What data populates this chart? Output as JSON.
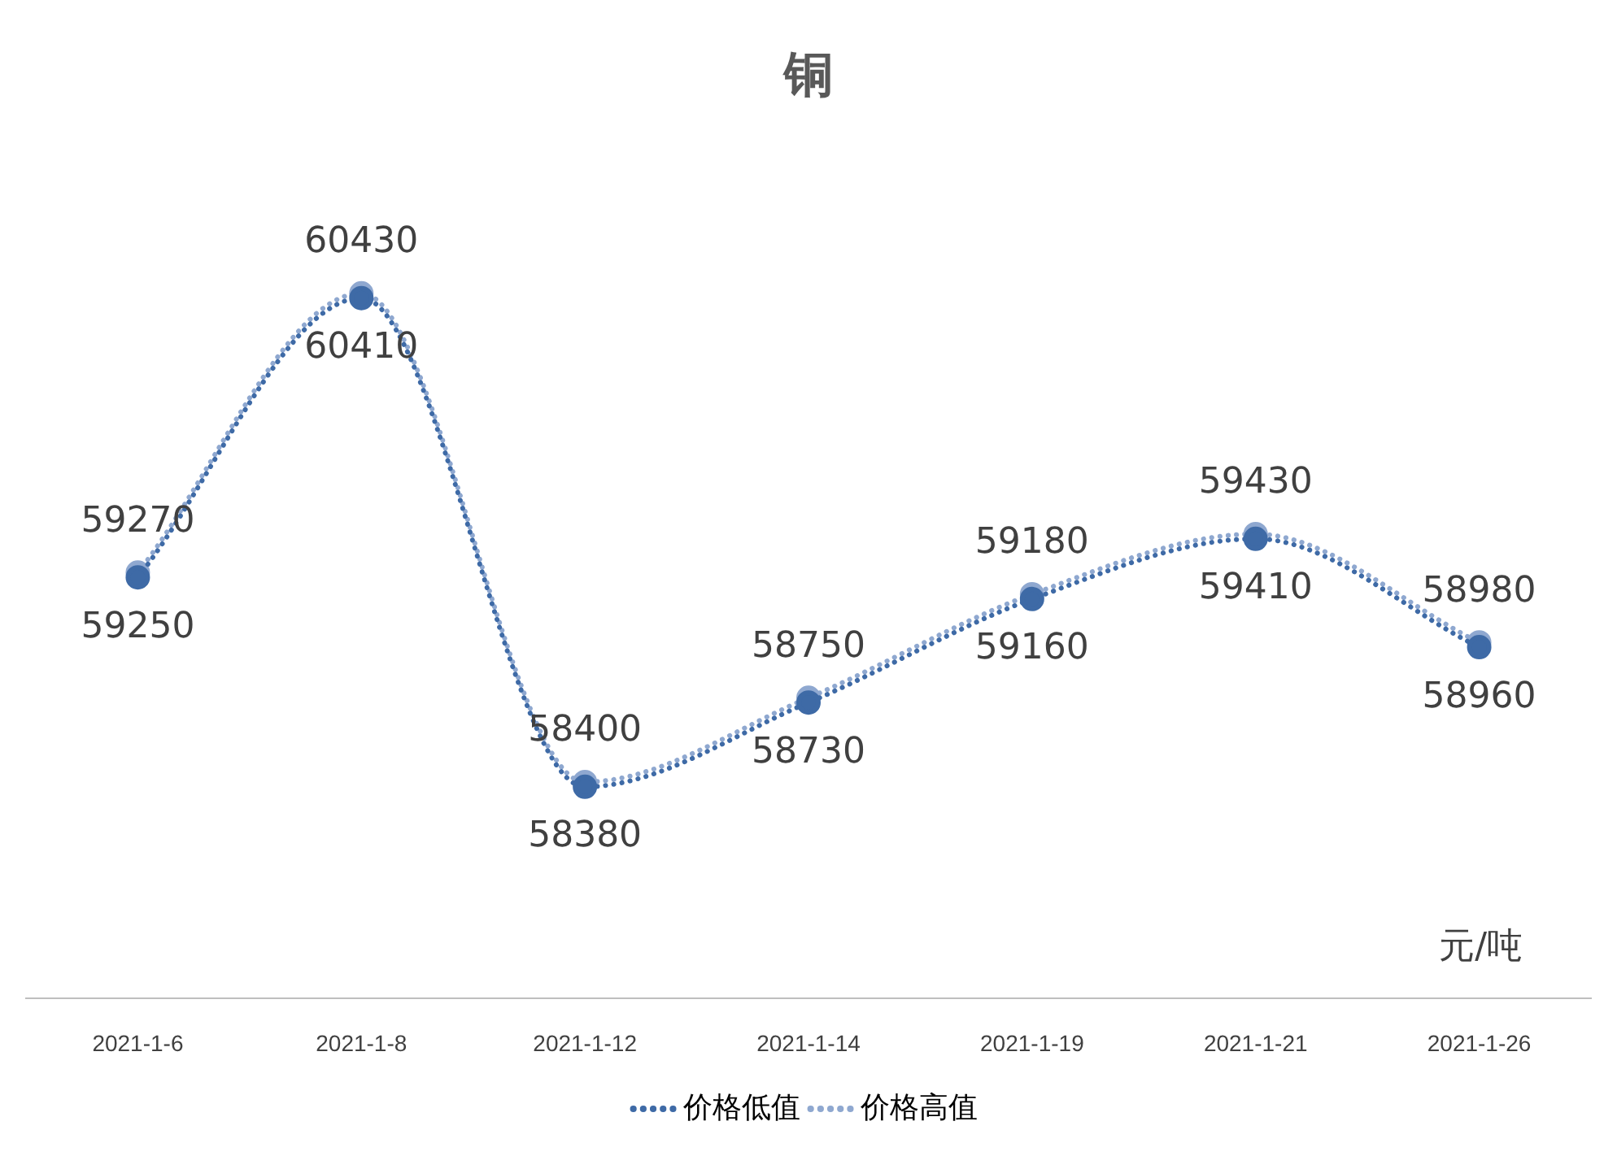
{
  "chart_data": {
    "type": "line",
    "title": "铜",
    "categories": [
      "2021-1-6",
      "2021-1-8",
      "2021-1-12",
      "2021-1-14",
      "2021-1-19",
      "2021-1-21",
      "2021-1-26"
    ],
    "series": [
      {
        "name": "价格低值",
        "color": "#3e6aa6",
        "values": [
          59250,
          60410,
          58380,
          58730,
          59160,
          59410,
          58960
        ]
      },
      {
        "name": "价格高值",
        "color": "#8fa8d0",
        "values": [
          59270,
          60430,
          58400,
          58750,
          59180,
          59430,
          58980
        ]
      }
    ],
    "tick_labels": "x",
    "data_labels": true,
    "legend": "bottom",
    "marker": "circle",
    "line_style": "dotted",
    "grid": false,
    "annotations": [
      "元/吨"
    ]
  }
}
